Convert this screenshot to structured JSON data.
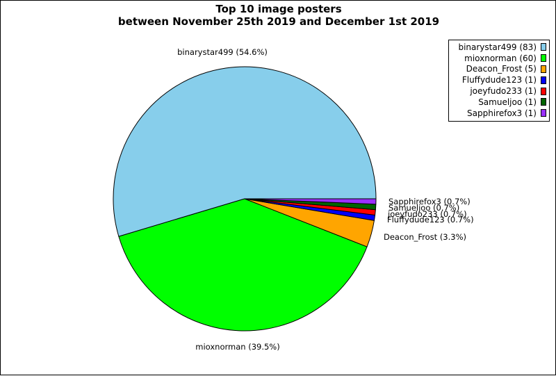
{
  "chart_data": {
    "type": "pie",
    "title_lines": [
      "Top 10 image posters",
      "between November 25th 2019 and December 1st 2019"
    ],
    "slices": [
      {
        "label": "binarystar499",
        "value": 83,
        "percent_label": "binarystar499 (54.6%)",
        "legend_label": "binarystar499 (83)",
        "color": "#87ceeb"
      },
      {
        "label": "mioxnorman",
        "value": 60,
        "percent_label": "mioxnorman (39.5%)",
        "legend_label": "mioxnorman (60)",
        "color": "#00ff00"
      },
      {
        "label": "Deacon_Frost",
        "value": 5,
        "percent_label": "Deacon_Frost (3.3%)",
        "legend_label": "Deacon_Frost (5)",
        "color": "#ffa500"
      },
      {
        "label": "Fluffydude123",
        "value": 1,
        "percent_label": "Fluffydude123 (0.7%)",
        "legend_label": "Fluffydude123 (1)",
        "color": "#0000ff"
      },
      {
        "label": "joeyfudo233",
        "value": 1,
        "percent_label": "joeyfudo233 (0.7%)",
        "legend_label": "joeyfudo233 (1)",
        "color": "#ff0000"
      },
      {
        "label": "Samueljoo",
        "value": 1,
        "percent_label": "Samueljoo (0.7%)",
        "legend_label": "Samueljoo (1)",
        "color": "#006400"
      },
      {
        "label": "Sapphirefox3",
        "value": 1,
        "percent_label": "Sapphirefox3 (0.7%)",
        "legend_label": "Sapphirefox3 (1)",
        "color": "#9b30ff"
      }
    ],
    "legend_position": "top-right"
  }
}
